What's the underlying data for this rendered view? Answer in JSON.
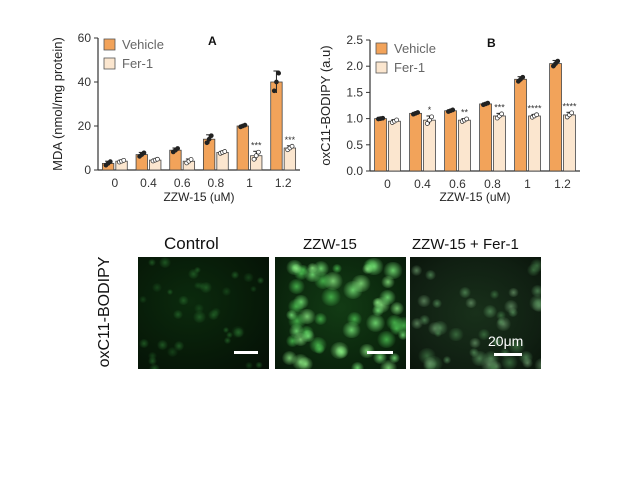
{
  "chart_data": [
    {
      "type": "bar",
      "panel_label": "A",
      "categories": [
        "0",
        "0.4",
        "0.6",
        "0.8",
        "1",
        "1.2"
      ],
      "xlabel": "ZZW-15 (uM)",
      "ylabel": "MDA (nmol/mg protein)",
      "ylim": [
        0,
        60
      ],
      "yticks": [
        "0",
        "20",
        "40",
        "60"
      ],
      "legend_placement": "top-left",
      "series": [
        {
          "name": "Vehicle",
          "color": "#f2a35a",
          "values": [
            3,
            7,
            9,
            14,
            20,
            40
          ],
          "errors": [
            1,
            1,
            1,
            2,
            0.5,
            5
          ]
        },
        {
          "name": "Fer-1",
          "color": "#fbe6cf",
          "values": [
            4,
            4.5,
            4,
            8,
            6.5,
            10
          ],
          "errors": [
            0.5,
            0.5,
            1,
            0.5,
            2,
            1
          ]
        }
      ],
      "significance": [
        "",
        "",
        "",
        "",
        "***",
        "***"
      ]
    },
    {
      "type": "bar",
      "panel_label": "B",
      "categories": [
        "0",
        "0.4",
        "0.6",
        "0.8",
        "1",
        "1.2"
      ],
      "xlabel": "ZZW-15 (uM)",
      "ylabel": "oxC11-BODIPY (a.u)",
      "ylim": [
        0,
        2.5
      ],
      "yticks": [
        "0.0",
        "0.5",
        "1.0",
        "1.5",
        "2.0",
        "2.5"
      ],
      "legend_placement": "top-left",
      "series": [
        {
          "name": "Vehicle",
          "color": "#f2a35a",
          "values": [
            1.0,
            1.1,
            1.15,
            1.28,
            1.75,
            2.05
          ],
          "errors": [
            0.01,
            0.02,
            0.02,
            0.02,
            0.05,
            0.06
          ]
        },
        {
          "name": "Fer-1",
          "color": "#fbe6cf",
          "values": [
            0.95,
            0.97,
            0.97,
            1.05,
            1.05,
            1.07
          ],
          "errors": [
            0.03,
            0.08,
            0.03,
            0.05,
            0.03,
            0.05
          ]
        }
      ],
      "significance": [
        "",
        "*",
        "**",
        "***",
        "****",
        "****"
      ]
    }
  ],
  "micrographs": {
    "row_label": "oxC11-BODIPY",
    "panels": [
      {
        "title": "Control",
        "scale_label": ""
      },
      {
        "title": "ZZW-15",
        "scale_label": ""
      },
      {
        "title": "ZZW-15 + Fer-1",
        "scale_label": "20μm"
      }
    ]
  }
}
